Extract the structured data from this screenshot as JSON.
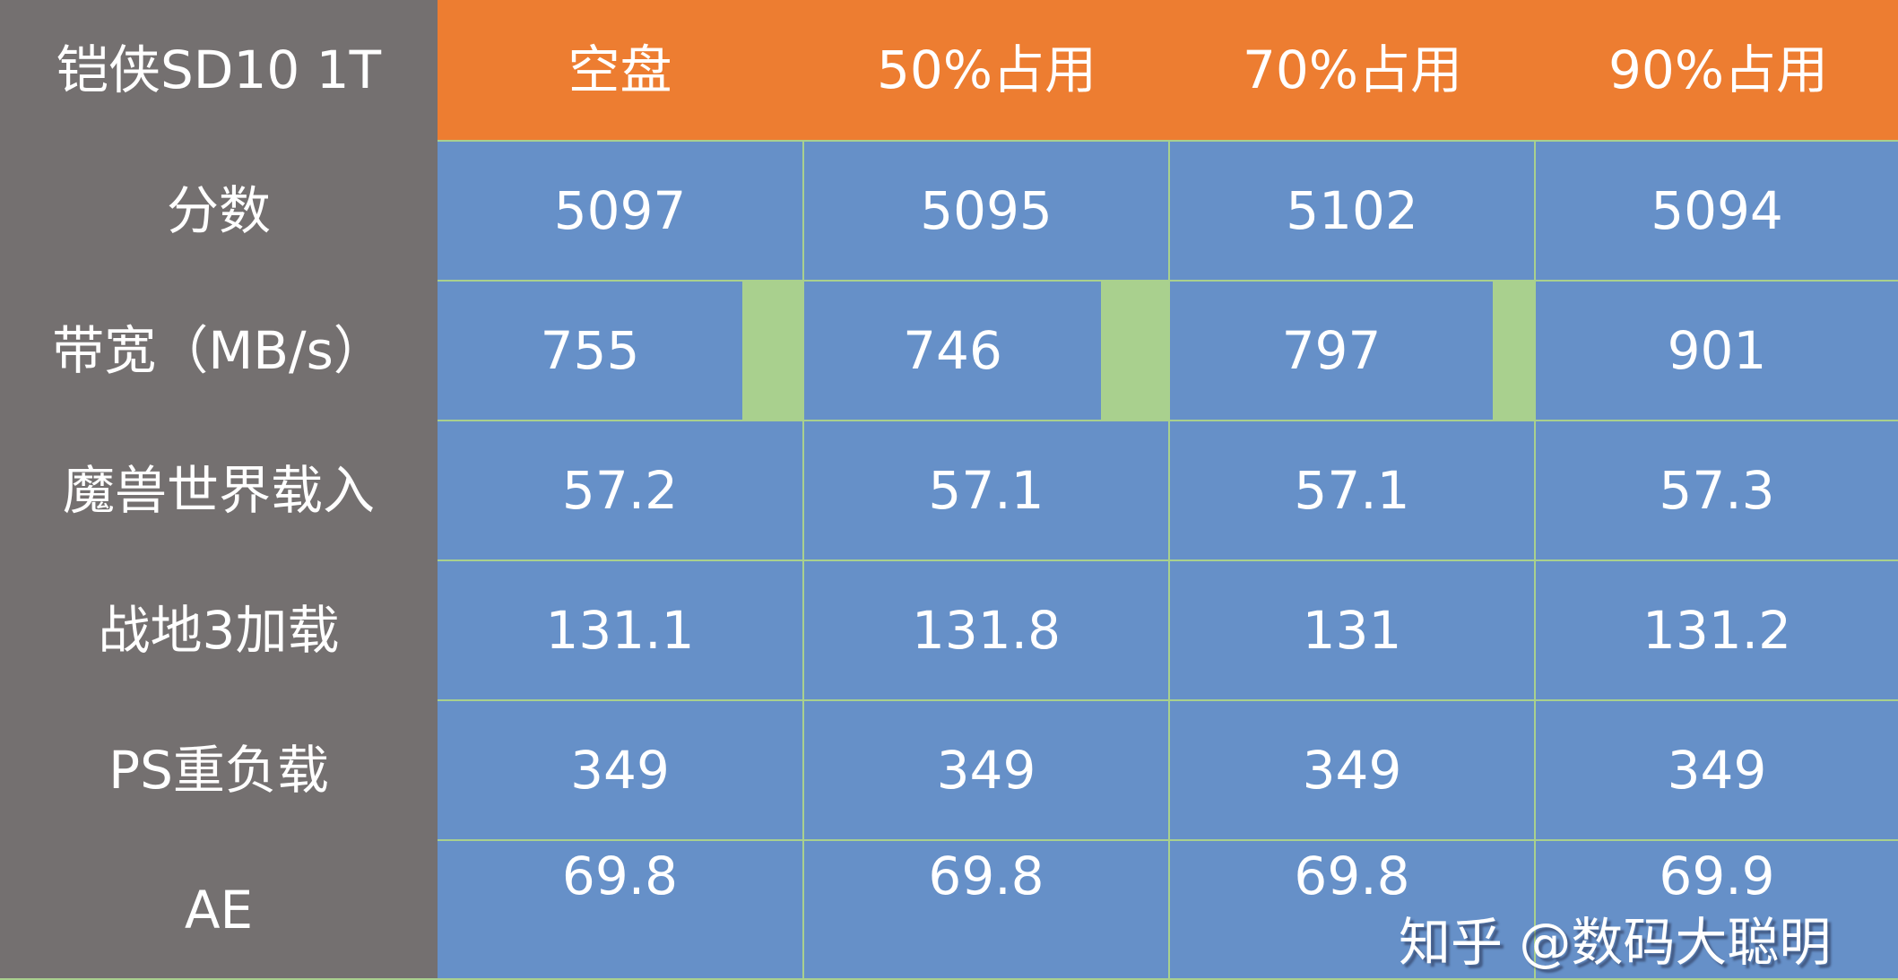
{
  "table": {
    "corner": "铠侠SD10 1T",
    "columns": [
      "空盘",
      "50%占用",
      "70%占用",
      "90%占用"
    ],
    "rows": [
      {
        "label": "分数",
        "values": [
          "5097",
          "5095",
          "5102",
          "5094"
        ]
      },
      {
        "label": "带宽（MB/s）",
        "values": [
          "755",
          "746",
          "797",
          "901"
        ]
      },
      {
        "label": "魔兽世界载入",
        "values": [
          "57.2",
          "57.1",
          "57.1",
          "57.3"
        ]
      },
      {
        "label": "战地3加载",
        "values": [
          "131.1",
          "131.8",
          "131",
          "131.2"
        ]
      },
      {
        "label": "PS重负载",
        "values": [
          "349",
          "349",
          "349",
          "349"
        ]
      },
      {
        "label": "AE",
        "values": [
          "69.8",
          "69.8",
          "69.8",
          "69.9"
        ]
      }
    ]
  },
  "watermark": "知乎 @数码大聪明",
  "colors": {
    "label_bg": "#747070",
    "header_bg": "#ED7D31",
    "cell_bg": "#6690C8",
    "grid": "#A9D08E"
  }
}
